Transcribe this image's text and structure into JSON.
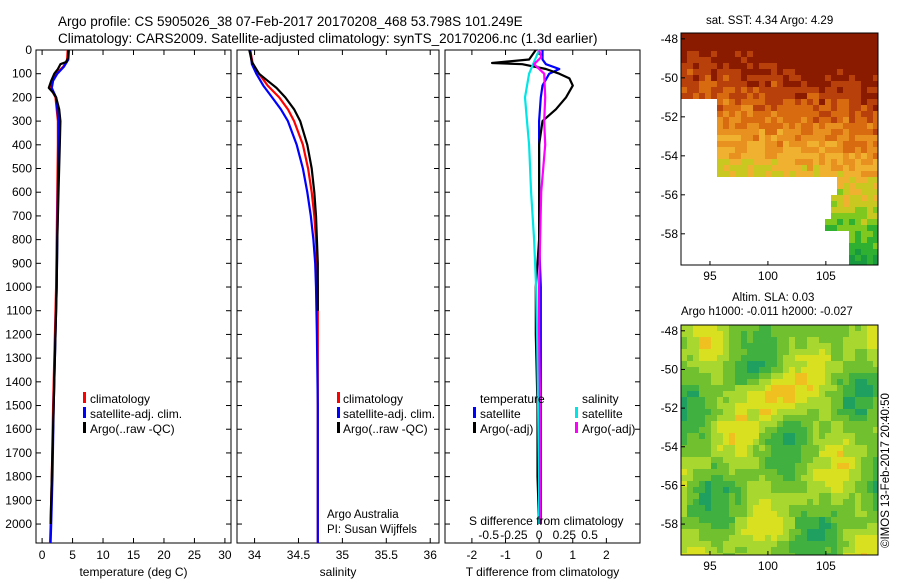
{
  "figure": {
    "title_line1": "Argo profile: CS 5905026_38 07-Feb-2017 20170208_468 53.798S 101.249E",
    "title_line2": "Climatology: CARS2009. Satellite-adjusted climatology: synTS_20170206.nc (1.3d earlier)",
    "credit": "©IMOS 13-Feb-2017 20:40:50",
    "annotation_line1": "Argo Australia",
    "annotation_line2": "PI: Susan Wijffels",
    "sst_map_title": "sat. SST: 4.34  Argo: 4.29",
    "sla_map_title_line1": "Altim. SLA: 0.03",
    "sla_map_title_line2": "Argo h1000: -0.011 h2000: -0.027",
    "colors": {
      "climatology": "#ff0000",
      "satellite_adj": "#0000ff",
      "argo": "#000000",
      "salinity_satellite": "#00e5e5",
      "salinity_argo": "#ff00ff"
    }
  },
  "chart_data": [
    {
      "type": "line",
      "panel": "temperature",
      "xlabel": "temperature (deg C)",
      "xlim": [
        -1,
        31
      ],
      "xticks": [
        0,
        5,
        10,
        15,
        20,
        25,
        30
      ],
      "ylim": [
        2080,
        0
      ],
      "yticks": [
        0,
        100,
        200,
        300,
        400,
        500,
        600,
        700,
        800,
        900,
        1000,
        1100,
        1200,
        1300,
        1400,
        1500,
        1600,
        1700,
        1800,
        1900,
        2000
      ],
      "legend": [
        "climatology",
        "satellite-adj. clim.",
        "Argo(..raw -QC)"
      ],
      "series": [
        {
          "name": "climatology",
          "depth": [
            0,
            40,
            70,
            100,
            130,
            160,
            200,
            300,
            400,
            600,
            800,
            1000,
            1200,
            1500,
            1800,
            2000,
            2080
          ],
          "values": [
            4.2,
            4.1,
            3.5,
            2.3,
            1.6,
            1.4,
            2.2,
            2.6,
            2.6,
            2.5,
            2.4,
            2.3,
            2.1,
            1.8,
            1.6,
            1.4,
            1.3
          ]
        },
        {
          "name": "satellite-adj. clim.",
          "depth": [
            0,
            40,
            70,
            100,
            130,
            160,
            200,
            300,
            400,
            600,
            800,
            1000,
            1200,
            1500,
            1800,
            2000,
            2080
          ],
          "values": [
            4.4,
            4.3,
            3.6,
            2.5,
            1.8,
            1.6,
            2.3,
            2.7,
            2.7,
            2.6,
            2.5,
            2.4,
            2.2,
            1.9,
            1.7,
            1.5,
            1.4
          ]
        },
        {
          "name": "Argo(..raw -QC)",
          "depth": [
            0,
            30,
            50,
            60,
            80,
            100,
            130,
            160,
            180,
            200,
            250,
            300,
            400,
            600,
            800,
            1000,
            1200,
            1500,
            1800,
            2000
          ],
          "values": [
            4.3,
            4.3,
            4.0,
            3.0,
            2.6,
            2.0,
            1.5,
            1.1,
            1.8,
            2.3,
            2.8,
            3.0,
            2.9,
            2.7,
            2.5,
            2.4,
            2.2,
            1.9,
            1.6,
            1.4
          ]
        }
      ]
    },
    {
      "type": "line",
      "panel": "salinity",
      "xlabel": "salinity",
      "xlim": [
        33.8,
        36.1
      ],
      "xticks": [
        34,
        34.5,
        35,
        35.5,
        36
      ],
      "ylim": [
        2080,
        0
      ],
      "legend": [
        "climatology",
        "satellite-adj. clim.",
        "Argo(..raw -QC)"
      ],
      "series": [
        {
          "name": "climatology",
          "depth": [
            0,
            60,
            100,
            150,
            200,
            250,
            300,
            400,
            500,
            600,
            700,
            800,
            900,
            1000,
            1200,
            1500,
            1800,
            2080
          ],
          "values": [
            33.95,
            33.98,
            34.05,
            34.15,
            34.28,
            34.38,
            34.45,
            34.55,
            34.61,
            34.65,
            34.68,
            34.7,
            34.71,
            34.72,
            34.72,
            34.72,
            34.72,
            34.72
          ]
        },
        {
          "name": "satellite-adj. clim.",
          "depth": [
            0,
            60,
            100,
            150,
            200,
            250,
            300,
            400,
            500,
            600,
            700,
            800,
            900,
            1000,
            1200,
            1500,
            1800,
            2080
          ],
          "values": [
            33.95,
            33.97,
            34.02,
            34.1,
            34.2,
            34.3,
            34.38,
            34.48,
            34.55,
            34.6,
            34.64,
            34.67,
            34.69,
            34.7,
            34.71,
            34.72,
            34.72,
            34.72
          ]
        },
        {
          "name": "Argo(..raw -QC)",
          "depth": [
            0,
            50,
            100,
            130,
            160,
            200,
            250,
            300,
            400,
            500,
            600,
            700,
            800,
            900,
            1000,
            1100
          ],
          "values": [
            33.94,
            33.97,
            34.05,
            34.15,
            34.25,
            34.35,
            34.45,
            34.52,
            34.6,
            34.65,
            34.68,
            34.7,
            34.71,
            34.72,
            34.72,
            34.72
          ]
        }
      ]
    },
    {
      "type": "line",
      "panel": "difference",
      "xlabel": "T difference from climatology",
      "xlabel_top": "S difference from climatology",
      "xlim": [
        -2.8,
        3.0
      ],
      "xticks": [
        -2,
        -1,
        0,
        1,
        2
      ],
      "xticks_top": [
        -0.5,
        -0.25,
        0,
        0.25,
        0.5
      ],
      "legend_groups": [
        "temperature",
        "salinity"
      ],
      "legend": [
        "satellite",
        "Argo(-adj)",
        "satellite",
        "Argo(-adj)"
      ],
      "series": [
        {
          "name": "temperature satellite",
          "depth": [
            0,
            40,
            60,
            80,
            100,
            150,
            200,
            300,
            500,
            800,
            1000,
            1500,
            2000
          ],
          "values": [
            0.1,
            0.1,
            0.2,
            0.6,
            0.3,
            0.1,
            0.05,
            0.0,
            0.0,
            0.0,
            0.05,
            0.05,
            0.05
          ]
        },
        {
          "name": "temperature Argo(-adj)",
          "depth": [
            0,
            40,
            55,
            60,
            80,
            100,
            120,
            150,
            200,
            250,
            300,
            400,
            500,
            800,
            1000,
            1200,
            1500,
            1800,
            2000
          ],
          "values": [
            -0.1,
            -0.3,
            -1.4,
            -0.5,
            0.2,
            0.6,
            0.9,
            1.0,
            0.8,
            0.5,
            0.1,
            0.0,
            0.0,
            0.0,
            -0.1,
            -0.1,
            -0.05,
            -0.05,
            0.0
          ]
        },
        {
          "name": "salinity satellite",
          "depth": [
            0,
            100,
            200,
            300,
            400,
            600,
            800,
            1000,
            1200,
            1500,
            1800,
            2000
          ],
          "values": [
            0.0,
            -0.1,
            -0.14,
            -0.12,
            -0.1,
            -0.08,
            -0.05,
            -0.03,
            -0.02,
            -0.01,
            0.0,
            0.0
          ]
        },
        {
          "name": "salinity Argo(-adj)",
          "depth": [
            0,
            30,
            60,
            100,
            200,
            300,
            400,
            500,
            600,
            800,
            1000,
            1200,
            1500,
            1800,
            2000
          ],
          "values": [
            0.0,
            0.02,
            -0.05,
            0.05,
            0.06,
            0.05,
            0.06,
            0.04,
            0.02,
            0.01,
            0.0,
            0.0,
            0.01,
            0.01,
            0.01
          ]
        }
      ]
    },
    {
      "type": "heatmap",
      "panel": "sat_sst_map",
      "title": "sat. SST: 4.34  Argo: 4.29",
      "xticks": [
        95,
        100,
        105
      ],
      "yticks": [
        -48,
        -50,
        -52,
        -54,
        -56,
        -58
      ],
      "xlim": [
        92.5,
        109.5
      ],
      "ylim": [
        -59.6,
        -47.7
      ]
    },
    {
      "type": "heatmap",
      "panel": "sla_map",
      "title": "Altim. SLA: 0.03",
      "subtitle": "Argo h1000: -0.011 h2000: -0.027",
      "xticks": [
        95,
        100,
        105
      ],
      "yticks": [
        -48,
        -50,
        -52,
        -54,
        -56,
        -58
      ],
      "xlim": [
        92.5,
        109.5
      ],
      "ylim": [
        -59.6,
        -47.7
      ]
    }
  ]
}
